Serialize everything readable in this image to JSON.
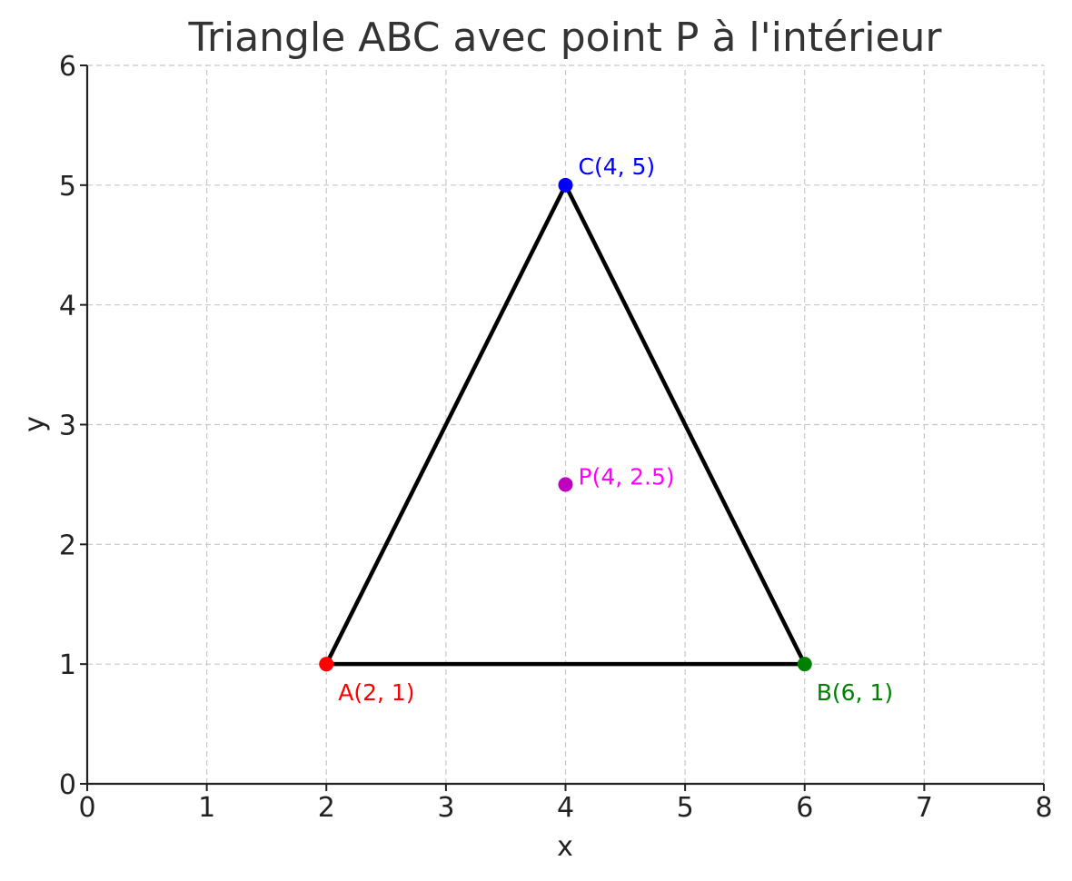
{
  "chart_data": {
    "type": "scatter",
    "title": "Triangle ABC avec point P à l'intérieur",
    "xlabel": "x",
    "ylabel": "y",
    "xlim": [
      0,
      8
    ],
    "ylim": [
      0,
      6
    ],
    "xticks": [
      0,
      1,
      2,
      3,
      4,
      5,
      6,
      7,
      8
    ],
    "yticks": [
      0,
      1,
      2,
      3,
      4,
      5,
      6
    ],
    "grid": true,
    "triangle": {
      "vertices": [
        "A",
        "B",
        "C"
      ],
      "color": "#000000"
    },
    "points": [
      {
        "id": "A",
        "x": 2,
        "y": 1,
        "label": "A(2, 1)",
        "color": "#ff0000",
        "label_position": "below-right"
      },
      {
        "id": "B",
        "x": 6,
        "y": 1,
        "label": "B(6, 1)",
        "color": "#008000",
        "label_position": "below-right"
      },
      {
        "id": "C",
        "x": 4,
        "y": 5,
        "label": "C(4, 5)",
        "color": "#0000ff",
        "label_position": "above-right"
      },
      {
        "id": "P",
        "x": 4,
        "y": 2.5,
        "label": "P(4, 2.5)",
        "color": "#c000c0",
        "label_color": "#ff00ff",
        "label_position": "right"
      }
    ]
  }
}
